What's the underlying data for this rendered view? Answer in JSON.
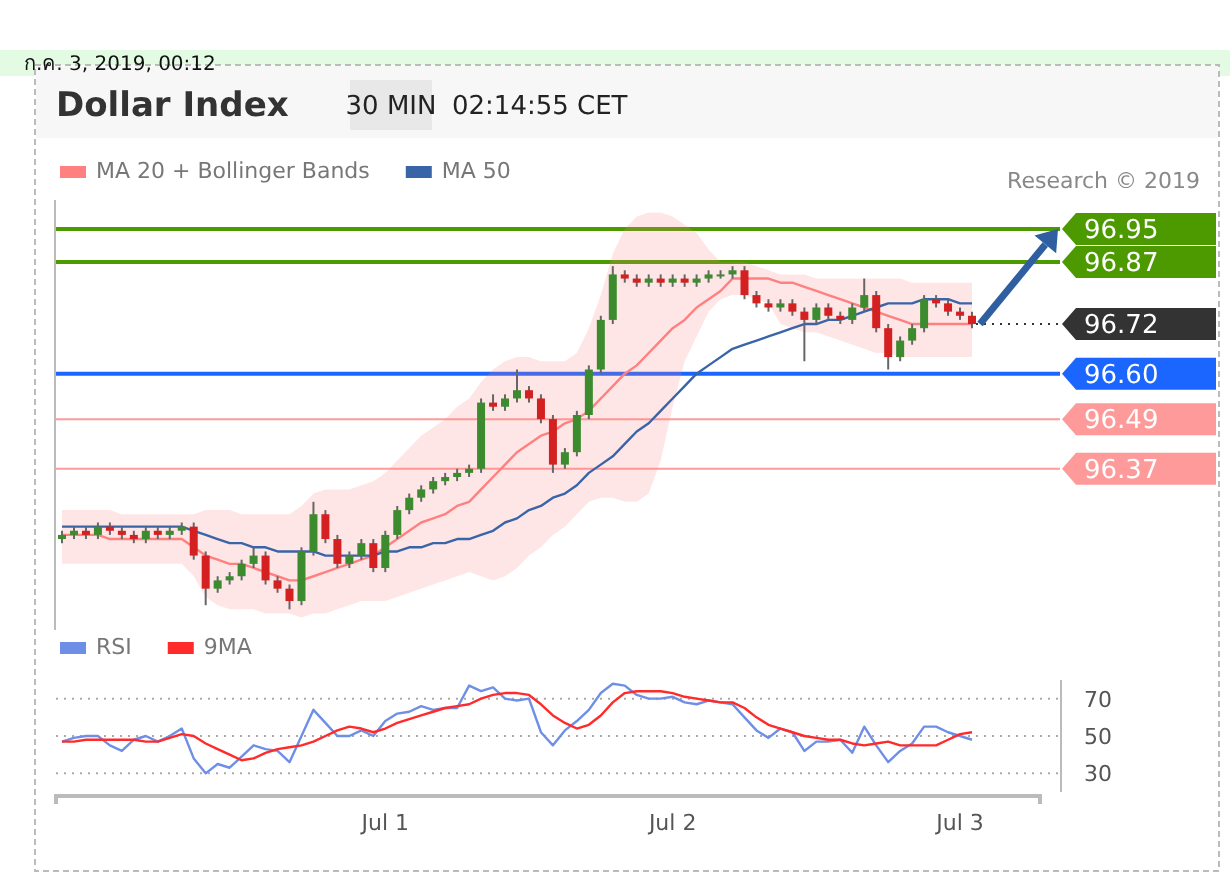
{
  "chart_data": [
    {
      "type": "candlestick",
      "title": "Dollar Index",
      "annotations": [
        "ก.ค. 3, 2019, 00:12",
        "30 MIN",
        "02:14:55 CET",
        "Research © 2019"
      ],
      "categories": [
        null,
        null,
        null,
        null,
        null,
        null,
        null,
        null,
        null,
        null,
        null,
        null,
        null,
        null,
        null,
        null,
        null,
        null,
        null,
        null,
        null,
        null,
        null,
        null,
        null,
        null,
        null,
        null,
        null,
        null,
        null,
        null,
        null,
        null,
        null,
        null,
        null,
        null,
        null,
        null,
        null,
        null,
        null,
        null,
        null,
        null,
        null,
        null,
        null,
        null,
        null,
        null,
        null,
        null,
        null,
        null,
        null,
        null,
        null,
        null,
        null,
        null,
        null,
        null,
        null,
        null,
        null,
        null,
        null,
        null,
        null,
        null,
        null,
        null,
        null,
        null,
        null
      ],
      "tick_labels": false,
      "ylim": [
        95.98,
        97.02
      ],
      "legend": "top left",
      "ohlc": [
        [
          96.2,
          96.22,
          96.19,
          96.21
        ],
        [
          96.21,
          96.23,
          96.2,
          96.22
        ],
        [
          96.22,
          96.23,
          96.2,
          96.21
        ],
        [
          96.21,
          96.24,
          96.2,
          96.23
        ],
        [
          96.23,
          96.24,
          96.21,
          96.22
        ],
        [
          96.22,
          96.23,
          96.2,
          96.21
        ],
        [
          96.21,
          96.22,
          96.19,
          96.2
        ],
        [
          96.2,
          96.23,
          96.19,
          96.22
        ],
        [
          96.22,
          96.23,
          96.2,
          96.21
        ],
        [
          96.21,
          96.23,
          96.2,
          96.22
        ],
        [
          96.22,
          96.24,
          96.21,
          96.23
        ],
        [
          96.23,
          96.24,
          96.15,
          96.16
        ],
        [
          96.16,
          96.17,
          96.04,
          96.08
        ],
        [
          96.08,
          96.11,
          96.07,
          96.1
        ],
        [
          96.1,
          96.12,
          96.09,
          96.11
        ],
        [
          96.11,
          96.15,
          96.1,
          96.14
        ],
        [
          96.14,
          96.18,
          96.13,
          96.16
        ],
        [
          96.16,
          96.17,
          96.09,
          96.1
        ],
        [
          96.1,
          96.11,
          96.07,
          96.08
        ],
        [
          96.08,
          96.09,
          96.03,
          96.05
        ],
        [
          96.05,
          96.18,
          96.04,
          96.17
        ],
        [
          96.17,
          96.29,
          96.16,
          96.26
        ],
        [
          96.26,
          96.27,
          96.19,
          96.2
        ],
        [
          96.2,
          96.21,
          96.13,
          96.14
        ],
        [
          96.14,
          96.17,
          96.13,
          96.16
        ],
        [
          96.16,
          96.2,
          96.15,
          96.19
        ],
        [
          96.19,
          96.2,
          96.12,
          96.13
        ],
        [
          96.13,
          96.22,
          96.12,
          96.21
        ],
        [
          96.21,
          96.28,
          96.2,
          96.27
        ],
        [
          96.27,
          96.31,
          96.26,
          96.3
        ],
        [
          96.3,
          96.33,
          96.29,
          96.32
        ],
        [
          96.32,
          96.35,
          96.31,
          96.34
        ],
        [
          96.34,
          96.36,
          96.33,
          96.35
        ],
        [
          96.35,
          96.37,
          96.34,
          96.36
        ],
        [
          96.36,
          96.38,
          96.35,
          96.37
        ],
        [
          96.37,
          96.54,
          96.36,
          96.53
        ],
        [
          96.53,
          96.55,
          96.51,
          96.52
        ],
        [
          96.52,
          96.55,
          96.51,
          96.54
        ],
        [
          96.54,
          96.61,
          96.53,
          96.56
        ],
        [
          96.56,
          96.57,
          96.53,
          96.54
        ],
        [
          96.54,
          96.55,
          96.48,
          96.49
        ],
        [
          96.49,
          96.5,
          96.36,
          96.38
        ],
        [
          96.38,
          96.42,
          96.37,
          96.41
        ],
        [
          96.41,
          96.51,
          96.4,
          96.5
        ],
        [
          96.5,
          96.62,
          96.49,
          96.61
        ],
        [
          96.61,
          96.74,
          96.6,
          96.73
        ],
        [
          96.73,
          96.86,
          96.72,
          96.84
        ],
        [
          96.84,
          96.85,
          96.82,
          96.83
        ],
        [
          96.83,
          96.84,
          96.81,
          96.82
        ],
        [
          96.82,
          96.84,
          96.81,
          96.83
        ],
        [
          96.83,
          96.84,
          96.81,
          96.82
        ],
        [
          96.82,
          96.84,
          96.81,
          96.83
        ],
        [
          96.83,
          96.84,
          96.81,
          96.82
        ],
        [
          96.82,
          96.84,
          96.81,
          96.83
        ],
        [
          96.83,
          96.85,
          96.82,
          96.84
        ],
        [
          96.84,
          96.85,
          96.83,
          96.84
        ],
        [
          96.84,
          96.86,
          96.83,
          96.85
        ],
        [
          96.85,
          96.86,
          96.78,
          96.79
        ],
        [
          96.79,
          96.8,
          96.76,
          96.77
        ],
        [
          96.77,
          96.78,
          96.75,
          96.76
        ],
        [
          96.76,
          96.78,
          96.75,
          96.77
        ],
        [
          96.77,
          96.78,
          96.74,
          96.75
        ],
        [
          96.75,
          96.76,
          96.63,
          96.73
        ],
        [
          96.73,
          96.77,
          96.72,
          96.76
        ],
        [
          96.76,
          96.77,
          96.73,
          96.74
        ],
        [
          96.74,
          96.75,
          96.72,
          96.73
        ],
        [
          96.73,
          96.77,
          96.72,
          96.76
        ],
        [
          96.76,
          96.83,
          96.75,
          96.79
        ],
        [
          96.79,
          96.8,
          96.7,
          96.71
        ],
        [
          96.71,
          96.72,
          96.61,
          96.64
        ],
        [
          96.64,
          96.69,
          96.63,
          96.68
        ],
        [
          96.68,
          96.72,
          96.67,
          96.71
        ],
        [
          96.71,
          96.79,
          96.7,
          96.78
        ],
        [
          96.78,
          96.79,
          96.76,
          96.77
        ],
        [
          96.77,
          96.78,
          96.74,
          96.75
        ],
        [
          96.75,
          96.76,
          96.73,
          96.74
        ],
        [
          96.74,
          96.75,
          96.71,
          96.72
        ]
      ],
      "series": [
        {
          "name": "MA 20 + Bollinger Bands",
          "type": "line",
          "color": "#ff8080",
          "values": [
            96.21,
            96.21,
            96.21,
            96.21,
            96.2,
            96.2,
            96.2,
            96.2,
            96.2,
            96.2,
            96.2,
            96.18,
            96.16,
            96.15,
            96.14,
            96.14,
            96.13,
            96.12,
            96.11,
            96.1,
            96.1,
            96.11,
            96.12,
            96.13,
            96.14,
            96.15,
            96.16,
            96.18,
            96.2,
            96.22,
            96.24,
            96.25,
            96.26,
            96.28,
            96.29,
            96.32,
            96.35,
            96.38,
            96.41,
            96.43,
            96.45,
            96.46,
            96.48,
            96.49,
            96.51,
            96.54,
            96.57,
            96.6,
            96.62,
            96.65,
            96.68,
            96.71,
            96.73,
            96.76,
            96.78,
            96.8,
            96.83,
            96.83,
            96.83,
            96.83,
            96.82,
            96.82,
            96.81,
            96.8,
            96.79,
            96.78,
            96.77,
            96.76,
            96.75,
            96.74,
            96.73,
            96.72,
            96.72,
            96.72,
            96.72,
            96.72,
            96.72
          ],
          "upper": [
            96.27,
            96.27,
            96.27,
            96.27,
            96.27,
            96.26,
            96.26,
            96.26,
            96.26,
            96.26,
            96.26,
            96.26,
            96.27,
            96.27,
            96.27,
            96.26,
            96.26,
            96.26,
            96.26,
            96.26,
            96.28,
            96.31,
            96.32,
            96.32,
            96.32,
            96.33,
            96.34,
            96.36,
            96.39,
            96.42,
            96.45,
            96.47,
            96.49,
            96.52,
            96.54,
            96.58,
            96.61,
            96.63,
            96.64,
            96.64,
            96.63,
            96.63,
            96.63,
            96.65,
            96.71,
            96.79,
            96.89,
            96.95,
            96.98,
            96.99,
            96.99,
            96.98,
            96.96,
            96.94,
            96.9,
            96.87,
            96.87,
            96.87,
            96.86,
            96.85,
            96.84,
            96.84,
            96.84,
            96.83,
            96.83,
            96.83,
            96.83,
            96.83,
            96.83,
            96.83,
            96.83,
            96.82,
            96.82,
            96.82,
            96.82,
            96.82,
            96.82
          ],
          "lower": [
            96.14,
            96.14,
            96.14,
            96.14,
            96.14,
            96.14,
            96.14,
            96.14,
            96.14,
            96.14,
            96.14,
            96.11,
            96.06,
            96.04,
            96.03,
            96.03,
            96.03,
            96.02,
            96.02,
            96.02,
            96.01,
            96.02,
            96.02,
            96.03,
            96.04,
            96.05,
            96.05,
            96.05,
            96.06,
            96.07,
            96.08,
            96.09,
            96.1,
            96.11,
            96.12,
            96.11,
            96.1,
            96.11,
            96.13,
            96.16,
            96.18,
            96.21,
            96.23,
            96.26,
            96.29,
            96.3,
            96.3,
            96.29,
            96.29,
            96.31,
            96.39,
            96.52,
            96.63,
            96.69,
            96.75,
            96.78,
            96.79,
            96.79,
            96.78,
            96.77,
            96.72,
            96.71,
            96.7,
            96.7,
            96.69,
            96.68,
            96.67,
            96.66,
            96.65,
            96.65,
            96.64,
            96.64,
            96.64,
            96.64,
            96.64,
            96.64,
            96.64
          ]
        },
        {
          "name": "MA 50",
          "type": "line",
          "color": "#3a64a8",
          "values": [
            96.23,
            96.23,
            96.23,
            96.23,
            96.23,
            96.23,
            96.23,
            96.23,
            96.23,
            96.23,
            96.23,
            96.22,
            96.21,
            96.2,
            96.19,
            96.19,
            96.18,
            96.18,
            96.17,
            96.17,
            96.17,
            96.17,
            96.16,
            96.16,
            96.16,
            96.16,
            96.16,
            96.17,
            96.17,
            96.18,
            96.18,
            96.19,
            96.19,
            96.2,
            96.2,
            96.21,
            96.22,
            96.24,
            96.25,
            96.27,
            96.28,
            96.3,
            96.31,
            96.33,
            96.36,
            96.38,
            96.4,
            96.43,
            96.46,
            96.48,
            96.51,
            96.54,
            96.57,
            96.6,
            96.62,
            96.64,
            96.66,
            96.67,
            96.68,
            96.69,
            96.7,
            96.71,
            96.72,
            96.72,
            96.73,
            96.73,
            96.74,
            96.75,
            96.76,
            96.77,
            96.77,
            96.77,
            96.78,
            96.78,
            96.78,
            96.77,
            96.77
          ]
        }
      ],
      "ref_lines": [
        {
          "axis": "y",
          "value": 96.95,
          "label": "96.95",
          "color": "#4c9a00"
        },
        {
          "axis": "y",
          "value": 96.87,
          "label": "96.87",
          "color": "#4c9a00"
        },
        {
          "axis": "y",
          "value": 96.72,
          "label": "96.72",
          "color": "#333333",
          "line_style": "dotted"
        },
        {
          "axis": "y",
          "value": 96.6,
          "label": "96.60",
          "color": "#1a66ff"
        },
        {
          "axis": "y",
          "value": 96.49,
          "label": "96.49",
          "color": "#ff9a9a"
        },
        {
          "axis": "y",
          "value": 96.37,
          "label": "96.37",
          "color": "#ff9a9a"
        }
      ]
    },
    {
      "type": "line",
      "categories": [
        null,
        null,
        null,
        null,
        null,
        null,
        null,
        null,
        null,
        null,
        null,
        null,
        null,
        null,
        null,
        null,
        null,
        null,
        null,
        null,
        null,
        null,
        null,
        null,
        null,
        null,
        null,
        "Jul 1",
        null,
        null,
        null,
        null,
        null,
        null,
        null,
        null,
        null,
        null,
        null,
        null,
        null,
        null,
        null,
        null,
        null,
        null,
        null,
        null,
        null,
        null,
        null,
        "Jul 2",
        null,
        null,
        null,
        null,
        null,
        null,
        null,
        null,
        null,
        null,
        null,
        null,
        null,
        null,
        null,
        null,
        null,
        null,
        null,
        null,
        null,
        null,
        null,
        "Jul 3",
        null
      ],
      "ylim": [
        20,
        80
      ],
      "yticks": [
        30,
        50,
        70
      ],
      "grid": "y",
      "legend": "top left",
      "series": [
        {
          "name": "RSI",
          "color": "#6f8fe6",
          "values": [
            47,
            49,
            50,
            50,
            45,
            42,
            48,
            50,
            47,
            50,
            54,
            38,
            30,
            35,
            33,
            39,
            45,
            43,
            42,
            36,
            50,
            64,
            57,
            50,
            50,
            53,
            50,
            58,
            62,
            63,
            66,
            64,
            65,
            65,
            77,
            74,
            76,
            70,
            69,
            70,
            52,
            45,
            53,
            58,
            64,
            73,
            78,
            77,
            72,
            70,
            70,
            71,
            68,
            67,
            69,
            68,
            67,
            60,
            53,
            49,
            54,
            52,
            42,
            47,
            47,
            48,
            41,
            55,
            45,
            36,
            42,
            46,
            55,
            55,
            52,
            50,
            48
          ]
        },
        {
          "name": "9MA",
          "color": "#ff2a2a",
          "values": [
            47,
            47,
            48,
            48,
            48,
            48,
            48,
            47,
            47,
            49,
            51,
            50,
            46,
            43,
            40,
            37,
            38,
            41,
            43,
            44,
            45,
            47,
            50,
            53,
            55,
            54,
            52,
            54,
            57,
            59,
            61,
            63,
            65,
            66,
            67,
            70,
            72,
            73,
            73,
            72,
            67,
            61,
            57,
            54,
            56,
            61,
            68,
            73,
            74,
            74,
            74,
            73,
            71,
            70,
            69,
            68,
            68,
            65,
            60,
            56,
            54,
            52,
            50,
            49,
            48,
            48,
            46,
            45,
            46,
            47,
            45,
            45,
            45,
            45,
            48,
            51,
            52
          ]
        }
      ]
    }
  ]
}
